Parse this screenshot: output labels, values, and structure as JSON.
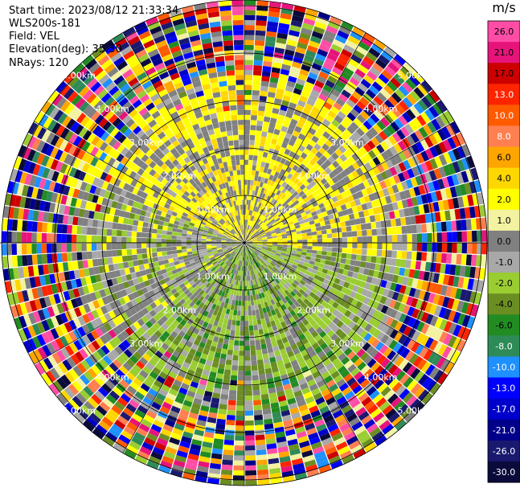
{
  "header": {
    "start_time": "Start time: 2023/08/12 21:33:34",
    "instrument": "WLS200s-181",
    "field": "Field: VEL",
    "elevation": "Elevation(deg): 35.30",
    "nrays": "NRays: 120"
  },
  "chart_data": {
    "type": "heatmap",
    "projection": "polar PPI",
    "range_rings": [
      "1.00km",
      "2.00km",
      "3.00km",
      "4.00km",
      "5.00km"
    ],
    "colorbar": {
      "unit": "m/s",
      "ticks": [
        "26.0",
        "21.0",
        "17.0",
        "13.0",
        "10.0",
        "8.0",
        "6.0",
        "4.0",
        "2.0",
        "1.0",
        "0.0",
        "-1.0",
        "-2.0",
        "-4.0",
        "-6.0",
        "-8.0",
        "-10.0",
        "-13.0",
        "-17.0",
        "-21.0",
        "-26.0",
        "-30.0"
      ],
      "colors": [
        "#ff4da6",
        "#e6147a",
        "#cc0000",
        "#ff2400",
        "#ff5a00",
        "#ff7f50",
        "#ffa500",
        "#ffd700",
        "#ffff00",
        "#f2f2a0",
        "#808080",
        "#a8a8a8",
        "#9acd32",
        "#6b8e23",
        "#228b22",
        "#2e8b57",
        "#1e90ff",
        "#0000ff",
        "#0000cd",
        "#00008b",
        "#191970",
        "#0b0b3b"
      ]
    }
  }
}
